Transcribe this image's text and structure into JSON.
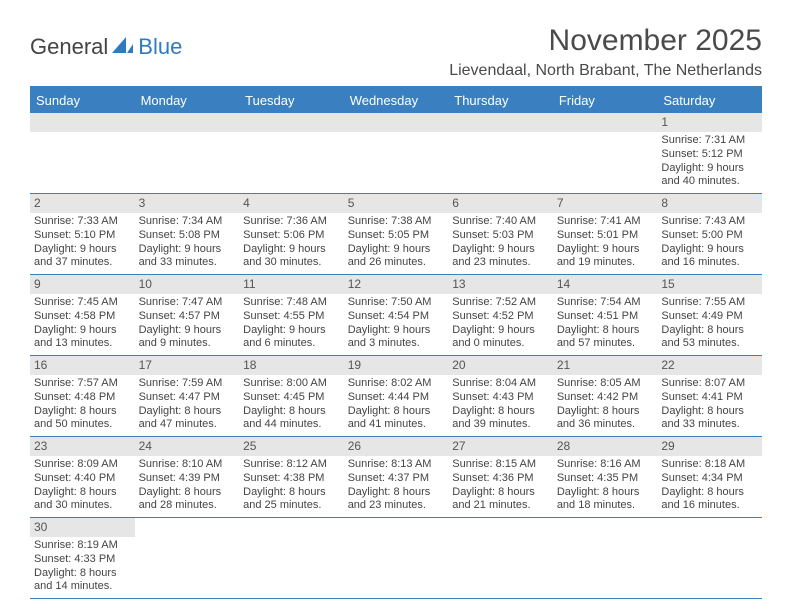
{
  "logo": {
    "general": "General",
    "blue": "Blue"
  },
  "title": "November 2025",
  "location": "Lievendaal, North Brabant, The Netherlands",
  "colors": {
    "header_bg": "#3a80c0",
    "divider": "#3a80c0",
    "cell_border": "#cfcfcf",
    "daynum_bg": "#e6e6e6",
    "text": "#444444",
    "title": "#4a4a4a"
  },
  "fonts": {
    "title_size": 30,
    "location_size": 16,
    "th_size": 13,
    "cell_size": 11
  },
  "dayHeaders": [
    "Sunday",
    "Monday",
    "Tuesday",
    "Wednesday",
    "Thursday",
    "Friday",
    "Saturday"
  ],
  "weeks": [
    [
      {
        "empty": true
      },
      {
        "empty": true
      },
      {
        "empty": true
      },
      {
        "empty": true
      },
      {
        "empty": true
      },
      {
        "empty": true
      },
      {
        "day": "1",
        "sunrise": "Sunrise: 7:31 AM",
        "sunset": "Sunset: 5:12 PM",
        "dl1": "Daylight: 9 hours",
        "dl2": "and 40 minutes."
      }
    ],
    [
      {
        "day": "2",
        "sunrise": "Sunrise: 7:33 AM",
        "sunset": "Sunset: 5:10 PM",
        "dl1": "Daylight: 9 hours",
        "dl2": "and 37 minutes."
      },
      {
        "day": "3",
        "sunrise": "Sunrise: 7:34 AM",
        "sunset": "Sunset: 5:08 PM",
        "dl1": "Daylight: 9 hours",
        "dl2": "and 33 minutes."
      },
      {
        "day": "4",
        "sunrise": "Sunrise: 7:36 AM",
        "sunset": "Sunset: 5:06 PM",
        "dl1": "Daylight: 9 hours",
        "dl2": "and 30 minutes."
      },
      {
        "day": "5",
        "sunrise": "Sunrise: 7:38 AM",
        "sunset": "Sunset: 5:05 PM",
        "dl1": "Daylight: 9 hours",
        "dl2": "and 26 minutes."
      },
      {
        "day": "6",
        "sunrise": "Sunrise: 7:40 AM",
        "sunset": "Sunset: 5:03 PM",
        "dl1": "Daylight: 9 hours",
        "dl2": "and 23 minutes."
      },
      {
        "day": "7",
        "sunrise": "Sunrise: 7:41 AM",
        "sunset": "Sunset: 5:01 PM",
        "dl1": "Daylight: 9 hours",
        "dl2": "and 19 minutes."
      },
      {
        "day": "8",
        "sunrise": "Sunrise: 7:43 AM",
        "sunset": "Sunset: 5:00 PM",
        "dl1": "Daylight: 9 hours",
        "dl2": "and 16 minutes."
      }
    ],
    [
      {
        "day": "9",
        "sunrise": "Sunrise: 7:45 AM",
        "sunset": "Sunset: 4:58 PM",
        "dl1": "Daylight: 9 hours",
        "dl2": "and 13 minutes."
      },
      {
        "day": "10",
        "sunrise": "Sunrise: 7:47 AM",
        "sunset": "Sunset: 4:57 PM",
        "dl1": "Daylight: 9 hours",
        "dl2": "and 9 minutes."
      },
      {
        "day": "11",
        "sunrise": "Sunrise: 7:48 AM",
        "sunset": "Sunset: 4:55 PM",
        "dl1": "Daylight: 9 hours",
        "dl2": "and 6 minutes."
      },
      {
        "day": "12",
        "sunrise": "Sunrise: 7:50 AM",
        "sunset": "Sunset: 4:54 PM",
        "dl1": "Daylight: 9 hours",
        "dl2": "and 3 minutes."
      },
      {
        "day": "13",
        "sunrise": "Sunrise: 7:52 AM",
        "sunset": "Sunset: 4:52 PM",
        "dl1": "Daylight: 9 hours",
        "dl2": "and 0 minutes."
      },
      {
        "day": "14",
        "sunrise": "Sunrise: 7:54 AM",
        "sunset": "Sunset: 4:51 PM",
        "dl1": "Daylight: 8 hours",
        "dl2": "and 57 minutes."
      },
      {
        "day": "15",
        "sunrise": "Sunrise: 7:55 AM",
        "sunset": "Sunset: 4:49 PM",
        "dl1": "Daylight: 8 hours",
        "dl2": "and 53 minutes."
      }
    ],
    [
      {
        "day": "16",
        "sunrise": "Sunrise: 7:57 AM",
        "sunset": "Sunset: 4:48 PM",
        "dl1": "Daylight: 8 hours",
        "dl2": "and 50 minutes."
      },
      {
        "day": "17",
        "sunrise": "Sunrise: 7:59 AM",
        "sunset": "Sunset: 4:47 PM",
        "dl1": "Daylight: 8 hours",
        "dl2": "and 47 minutes."
      },
      {
        "day": "18",
        "sunrise": "Sunrise: 8:00 AM",
        "sunset": "Sunset: 4:45 PM",
        "dl1": "Daylight: 8 hours",
        "dl2": "and 44 minutes."
      },
      {
        "day": "19",
        "sunrise": "Sunrise: 8:02 AM",
        "sunset": "Sunset: 4:44 PM",
        "dl1": "Daylight: 8 hours",
        "dl2": "and 41 minutes."
      },
      {
        "day": "20",
        "sunrise": "Sunrise: 8:04 AM",
        "sunset": "Sunset: 4:43 PM",
        "dl1": "Daylight: 8 hours",
        "dl2": "and 39 minutes."
      },
      {
        "day": "21",
        "sunrise": "Sunrise: 8:05 AM",
        "sunset": "Sunset: 4:42 PM",
        "dl1": "Daylight: 8 hours",
        "dl2": "and 36 minutes."
      },
      {
        "day": "22",
        "sunrise": "Sunrise: 8:07 AM",
        "sunset": "Sunset: 4:41 PM",
        "dl1": "Daylight: 8 hours",
        "dl2": "and 33 minutes."
      }
    ],
    [
      {
        "day": "23",
        "sunrise": "Sunrise: 8:09 AM",
        "sunset": "Sunset: 4:40 PM",
        "dl1": "Daylight: 8 hours",
        "dl2": "and 30 minutes."
      },
      {
        "day": "24",
        "sunrise": "Sunrise: 8:10 AM",
        "sunset": "Sunset: 4:39 PM",
        "dl1": "Daylight: 8 hours",
        "dl2": "and 28 minutes."
      },
      {
        "day": "25",
        "sunrise": "Sunrise: 8:12 AM",
        "sunset": "Sunset: 4:38 PM",
        "dl1": "Daylight: 8 hours",
        "dl2": "and 25 minutes."
      },
      {
        "day": "26",
        "sunrise": "Sunrise: 8:13 AM",
        "sunset": "Sunset: 4:37 PM",
        "dl1": "Daylight: 8 hours",
        "dl2": "and 23 minutes."
      },
      {
        "day": "27",
        "sunrise": "Sunrise: 8:15 AM",
        "sunset": "Sunset: 4:36 PM",
        "dl1": "Daylight: 8 hours",
        "dl2": "and 21 minutes."
      },
      {
        "day": "28",
        "sunrise": "Sunrise: 8:16 AM",
        "sunset": "Sunset: 4:35 PM",
        "dl1": "Daylight: 8 hours",
        "dl2": "and 18 minutes."
      },
      {
        "day": "29",
        "sunrise": "Sunrise: 8:18 AM",
        "sunset": "Sunset: 4:34 PM",
        "dl1": "Daylight: 8 hours",
        "dl2": "and 16 minutes."
      }
    ],
    [
      {
        "day": "30",
        "sunrise": "Sunrise: 8:19 AM",
        "sunset": "Sunset: 4:33 PM",
        "dl1": "Daylight: 8 hours",
        "dl2": "and 14 minutes."
      },
      {
        "empty": true
      },
      {
        "empty": true
      },
      {
        "empty": true
      },
      {
        "empty": true
      },
      {
        "empty": true
      },
      {
        "empty": true
      }
    ]
  ]
}
